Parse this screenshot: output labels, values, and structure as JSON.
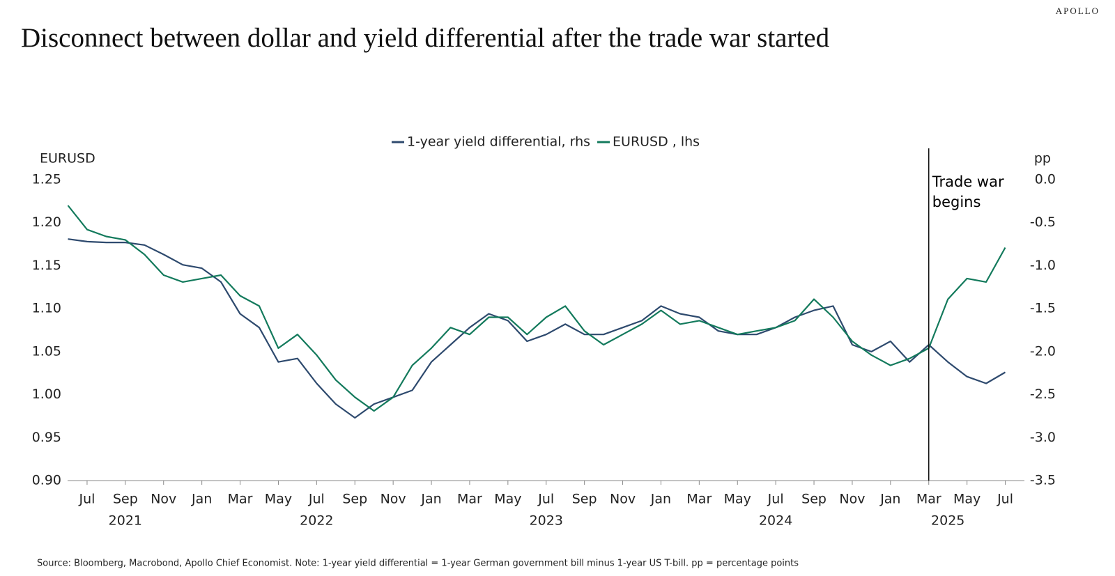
{
  "brand": "APOLLO",
  "chart_data": {
    "type": "line",
    "title": "Disconnect between dollar and yield differential after the trade war started",
    "source": "Source: Bloomberg, Macrobond, Apollo Chief Economist. Note: 1-year yield differential = 1-year German government bill minus 1-year US T-bill. pp = percentage points",
    "y_label": "EURUSD",
    "y2_label": "pp",
    "x": [
      "2021-06",
      "2021-07",
      "2021-08",
      "2021-09",
      "2021-10",
      "2021-11",
      "2021-12",
      "2022-01",
      "2022-02",
      "2022-03",
      "2022-04",
      "2022-05",
      "2022-06",
      "2022-07",
      "2022-08",
      "2022-09",
      "2022-10",
      "2022-11",
      "2022-12",
      "2023-01",
      "2023-02",
      "2023-03",
      "2023-04",
      "2023-05",
      "2023-06",
      "2023-07",
      "2023-08",
      "2023-09",
      "2023-10",
      "2023-11",
      "2023-12",
      "2024-01",
      "2024-02",
      "2024-03",
      "2024-04",
      "2024-05",
      "2024-06",
      "2024-07",
      "2024-08",
      "2024-09",
      "2024-10",
      "2024-11",
      "2024-12",
      "2025-01",
      "2025-02",
      "2025-03",
      "2025-04",
      "2025-05",
      "2025-06",
      "2025-07"
    ],
    "series": [
      {
        "name": "1-year yield differential, rhs",
        "color": "#2e4a6e",
        "axis": "y2",
        "values": [
          -0.69,
          -0.72,
          -0.73,
          -0.73,
          -0.76,
          -0.87,
          -0.99,
          -1.03,
          -1.19,
          -1.56,
          -1.72,
          -2.12,
          -2.08,
          -2.37,
          -2.61,
          -2.77,
          -2.61,
          -2.53,
          -2.45,
          -2.12,
          -1.92,
          -1.72,
          -1.56,
          -1.64,
          -1.88,
          -1.8,
          -1.68,
          -1.8,
          -1.8,
          -1.72,
          -1.64,
          -1.47,
          -1.56,
          -1.6,
          -1.76,
          -1.8,
          -1.8,
          -1.72,
          -1.6,
          -1.52,
          -1.47,
          -1.92,
          -2.0,
          -1.88,
          -2.12,
          -1.92,
          -2.12,
          -2.29,
          -2.37,
          -2.24
        ]
      },
      {
        "name": "EURUSD , lhs",
        "color": "#137a5c",
        "axis": "y",
        "values": [
          1.22,
          1.192,
          1.184,
          1.18,
          1.163,
          1.139,
          1.131,
          1.135,
          1.139,
          1.115,
          1.103,
          1.054,
          1.07,
          1.046,
          1.017,
          0.997,
          0.981,
          0.997,
          1.034,
          1.054,
          1.078,
          1.07,
          1.09,
          1.09,
          1.07,
          1.09,
          1.103,
          1.074,
          1.058,
          1.07,
          1.082,
          1.098,
          1.082,
          1.086,
          1.078,
          1.07,
          1.074,
          1.078,
          1.086,
          1.111,
          1.09,
          1.062,
          1.046,
          1.034,
          1.042,
          1.054,
          1.111,
          1.135,
          1.131,
          1.171
        ]
      }
    ],
    "xlim": [
      "2021-06",
      "2025-08"
    ],
    "xticks": [
      {
        "value": "2021-07",
        "label": "Jul"
      },
      {
        "value": "2021-09",
        "label": "Sep"
      },
      {
        "value": "2021-11",
        "label": "Nov"
      },
      {
        "value": "2022-01",
        "label": "Jan"
      },
      {
        "value": "2022-03",
        "label": "Mar"
      },
      {
        "value": "2022-05",
        "label": "May"
      },
      {
        "value": "2022-07",
        "label": "Jul"
      },
      {
        "value": "2022-09",
        "label": "Sep"
      },
      {
        "value": "2022-11",
        "label": "Nov"
      },
      {
        "value": "2023-01",
        "label": "Jan"
      },
      {
        "value": "2023-03",
        "label": "Mar"
      },
      {
        "value": "2023-05",
        "label": "May"
      },
      {
        "value": "2023-07",
        "label": "Jul"
      },
      {
        "value": "2023-09",
        "label": "Sep"
      },
      {
        "value": "2023-11",
        "label": "Nov"
      },
      {
        "value": "2024-01",
        "label": "Jan"
      },
      {
        "value": "2024-03",
        "label": "Mar"
      },
      {
        "value": "2024-05",
        "label": "May"
      },
      {
        "value": "2024-07",
        "label": "Jul"
      },
      {
        "value": "2024-09",
        "label": "Sep"
      },
      {
        "value": "2024-11",
        "label": "Nov"
      },
      {
        "value": "2025-01",
        "label": "Jan"
      },
      {
        "value": "2025-03",
        "label": "Mar"
      },
      {
        "value": "2025-05",
        "label": "May"
      },
      {
        "value": "2025-07",
        "label": "Jul"
      }
    ],
    "year_labels": [
      {
        "value": "2021-09",
        "label": "2021"
      },
      {
        "value": "2022-07",
        "label": "2022"
      },
      {
        "value": "2023-07",
        "label": "2023"
      },
      {
        "value": "2024-07",
        "label": "2024"
      },
      {
        "value": "2025-04",
        "label": "2025"
      }
    ],
    "ylim": [
      0.9,
      1.25
    ],
    "yticks": [
      {
        "value": 0.9,
        "label": "0.90"
      },
      0.95,
      {
        "value": 1.0,
        "label": "1.00"
      },
      1.05,
      {
        "value": 1.1,
        "label": "1.10"
      },
      1.15,
      {
        "value": 1.2,
        "label": "1.20"
      },
      1.25
    ],
    "y2lim": [
      -3.5,
      0
    ],
    "y2ticks": [
      {
        "value": -3.5,
        "label": "-3.5"
      },
      {
        "value": -3.0,
        "label": "-3.0"
      },
      -2.5,
      {
        "value": -2.0,
        "label": "-2.0"
      },
      -1.5,
      {
        "value": -1.0,
        "label": "-1.0"
      },
      -0.5,
      {
        "value": 0,
        "label": "0.0"
      }
    ],
    "event": {
      "x": "2025-03",
      "label": [
        "Trade war",
        "begins"
      ]
    }
  }
}
